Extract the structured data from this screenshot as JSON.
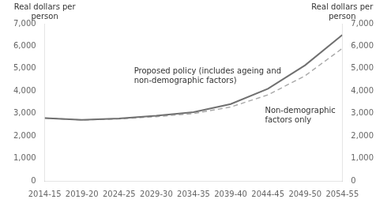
{
  "chart_data": {
    "type": "line",
    "x": [
      0,
      5,
      10,
      15,
      20,
      25,
      30,
      35,
      40
    ],
    "xlim": [
      0,
      40
    ],
    "xticks": [
      {
        "value": 0,
        "label": "2014-15"
      },
      {
        "value": 5,
        "label": "2019-20"
      },
      {
        "value": 10,
        "label": "2024-25"
      },
      {
        "value": 15,
        "label": "2029-30"
      },
      {
        "value": 20,
        "label": "2034-35"
      },
      {
        "value": 25,
        "label": "2039-40"
      },
      {
        "value": 30,
        "label": "2044-45"
      },
      {
        "value": 35,
        "label": "2049-50"
      },
      {
        "value": 40,
        "label": "2054-55"
      }
    ],
    "ylim": [
      0,
      7000
    ],
    "yticks": [
      0,
      {
        "value": 1000,
        "label": "1,000"
      },
      {
        "value": 2000,
        "label": "2,000"
      },
      {
        "value": 3000,
        "label": "3,000"
      },
      {
        "value": 4000,
        "label": "4,000"
      },
      {
        "value": 5000,
        "label": "5,000"
      },
      {
        "value": 6000,
        "label": "6,000"
      },
      {
        "value": 7000,
        "label": "7,000"
      }
    ],
    "y2lim": [
      0,
      7000
    ],
    "y2ticks": [
      0,
      {
        "value": 1000,
        "label": "1,000"
      },
      {
        "value": 2000,
        "label": "2,000"
      },
      {
        "value": 3000,
        "label": "3,000"
      },
      {
        "value": 4000,
        "label": "4,000"
      },
      {
        "value": 5000,
        "label": "5,000"
      },
      {
        "value": 6000,
        "label": "6,000"
      },
      {
        "value": 7000,
        "label": "7,000"
      }
    ],
    "ylabel": "Real dollars per\n     person",
    "y2label": "Real dollars per\n     person",
    "grid": false,
    "series": [
      {
        "color": "#707070",
        "line_style": "solid",
        "values": [
          2800,
          2720,
          2780,
          2900,
          3060,
          3420,
          4100,
          5150,
          6500
        ]
      },
      {
        "color": "#a8a8a8",
        "line_style": "dashed",
        "values": [
          2800,
          2710,
          2760,
          2860,
          3000,
          3290,
          3830,
          4680,
          5900
        ]
      }
    ],
    "annotations": [
      "Proposed policy (includes ageing and\nnon-demographic factors)",
      "Non-demographic\nfactors only"
    ]
  }
}
